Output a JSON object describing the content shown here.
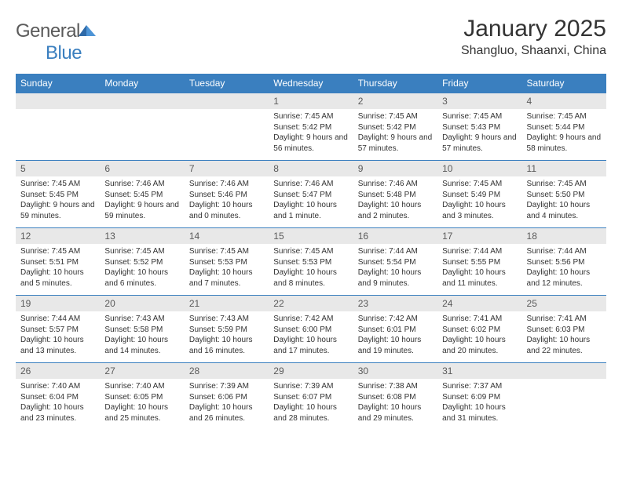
{
  "logo": {
    "text1": "General",
    "text2": "Blue"
  },
  "title": "January 2025",
  "location": "Shangluo, Shaanxi, China",
  "weekdays": [
    "Sunday",
    "Monday",
    "Tuesday",
    "Wednesday",
    "Thursday",
    "Friday",
    "Saturday"
  ],
  "colors": {
    "header_bg": "#3a7fbf",
    "header_text": "#ffffff",
    "daynum_bg": "#e8e8e8",
    "row_border": "#3a7fbf",
    "body_text": "#333333",
    "logo_gray": "#5a5a5a",
    "logo_blue": "#3a7fbf"
  },
  "weeks": [
    [
      null,
      null,
      null,
      {
        "n": "1",
        "sr": "7:45 AM",
        "ss": "5:42 PM",
        "dl": "9 hours and 56 minutes."
      },
      {
        "n": "2",
        "sr": "7:45 AM",
        "ss": "5:42 PM",
        "dl": "9 hours and 57 minutes."
      },
      {
        "n": "3",
        "sr": "7:45 AM",
        "ss": "5:43 PM",
        "dl": "9 hours and 57 minutes."
      },
      {
        "n": "4",
        "sr": "7:45 AM",
        "ss": "5:44 PM",
        "dl": "9 hours and 58 minutes."
      }
    ],
    [
      {
        "n": "5",
        "sr": "7:45 AM",
        "ss": "5:45 PM",
        "dl": "9 hours and 59 minutes."
      },
      {
        "n": "6",
        "sr": "7:46 AM",
        "ss": "5:45 PM",
        "dl": "9 hours and 59 minutes."
      },
      {
        "n": "7",
        "sr": "7:46 AM",
        "ss": "5:46 PM",
        "dl": "10 hours and 0 minutes."
      },
      {
        "n": "8",
        "sr": "7:46 AM",
        "ss": "5:47 PM",
        "dl": "10 hours and 1 minute."
      },
      {
        "n": "9",
        "sr": "7:46 AM",
        "ss": "5:48 PM",
        "dl": "10 hours and 2 minutes."
      },
      {
        "n": "10",
        "sr": "7:45 AM",
        "ss": "5:49 PM",
        "dl": "10 hours and 3 minutes."
      },
      {
        "n": "11",
        "sr": "7:45 AM",
        "ss": "5:50 PM",
        "dl": "10 hours and 4 minutes."
      }
    ],
    [
      {
        "n": "12",
        "sr": "7:45 AM",
        "ss": "5:51 PM",
        "dl": "10 hours and 5 minutes."
      },
      {
        "n": "13",
        "sr": "7:45 AM",
        "ss": "5:52 PM",
        "dl": "10 hours and 6 minutes."
      },
      {
        "n": "14",
        "sr": "7:45 AM",
        "ss": "5:53 PM",
        "dl": "10 hours and 7 minutes."
      },
      {
        "n": "15",
        "sr": "7:45 AM",
        "ss": "5:53 PM",
        "dl": "10 hours and 8 minutes."
      },
      {
        "n": "16",
        "sr": "7:44 AM",
        "ss": "5:54 PM",
        "dl": "10 hours and 9 minutes."
      },
      {
        "n": "17",
        "sr": "7:44 AM",
        "ss": "5:55 PM",
        "dl": "10 hours and 11 minutes."
      },
      {
        "n": "18",
        "sr": "7:44 AM",
        "ss": "5:56 PM",
        "dl": "10 hours and 12 minutes."
      }
    ],
    [
      {
        "n": "19",
        "sr": "7:44 AM",
        "ss": "5:57 PM",
        "dl": "10 hours and 13 minutes."
      },
      {
        "n": "20",
        "sr": "7:43 AM",
        "ss": "5:58 PM",
        "dl": "10 hours and 14 minutes."
      },
      {
        "n": "21",
        "sr": "7:43 AM",
        "ss": "5:59 PM",
        "dl": "10 hours and 16 minutes."
      },
      {
        "n": "22",
        "sr": "7:42 AM",
        "ss": "6:00 PM",
        "dl": "10 hours and 17 minutes."
      },
      {
        "n": "23",
        "sr": "7:42 AM",
        "ss": "6:01 PM",
        "dl": "10 hours and 19 minutes."
      },
      {
        "n": "24",
        "sr": "7:41 AM",
        "ss": "6:02 PM",
        "dl": "10 hours and 20 minutes."
      },
      {
        "n": "25",
        "sr": "7:41 AM",
        "ss": "6:03 PM",
        "dl": "10 hours and 22 minutes."
      }
    ],
    [
      {
        "n": "26",
        "sr": "7:40 AM",
        "ss": "6:04 PM",
        "dl": "10 hours and 23 minutes."
      },
      {
        "n": "27",
        "sr": "7:40 AM",
        "ss": "6:05 PM",
        "dl": "10 hours and 25 minutes."
      },
      {
        "n": "28",
        "sr": "7:39 AM",
        "ss": "6:06 PM",
        "dl": "10 hours and 26 minutes."
      },
      {
        "n": "29",
        "sr": "7:39 AM",
        "ss": "6:07 PM",
        "dl": "10 hours and 28 minutes."
      },
      {
        "n": "30",
        "sr": "7:38 AM",
        "ss": "6:08 PM",
        "dl": "10 hours and 29 minutes."
      },
      {
        "n": "31",
        "sr": "7:37 AM",
        "ss": "6:09 PM",
        "dl": "10 hours and 31 minutes."
      },
      null
    ]
  ],
  "labels": {
    "sunrise": "Sunrise:",
    "sunset": "Sunset:",
    "daylight": "Daylight:"
  }
}
